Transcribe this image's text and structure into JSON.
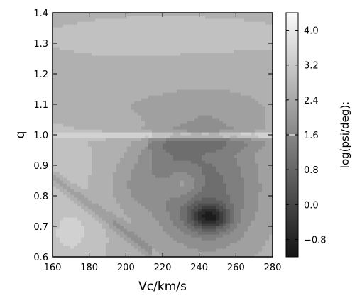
{
  "chart_data": {
    "type": "heatmap",
    "xlabel": "Vc/km/s",
    "ylabel": "q",
    "xlim": [
      160,
      280
    ],
    "ylim": [
      0.6,
      1.4
    ],
    "x_ticks": [
      "160",
      "180",
      "200",
      "220",
      "240",
      "260",
      "280"
    ],
    "y_ticks": [
      "0.6",
      "0.7",
      "0.8",
      "0.9",
      "1.0",
      "1.1",
      "1.2",
      "1.3",
      "1.4"
    ],
    "colorbar": {
      "label": "log(psi/deg):",
      "range": [
        -1.2,
        4.4
      ],
      "ticks": [
        "−0.8",
        "0.0",
        "0.8",
        "1.6",
        "2.4",
        "3.2",
        "4.0"
      ],
      "tick_values": [
        -0.8,
        0.0,
        0.8,
        1.6,
        2.4,
        3.2,
        4.0
      ],
      "levels": [
        -1.2,
        -0.8,
        -0.4,
        0.0,
        0.4,
        0.8,
        1.2,
        1.6,
        2.0,
        2.4,
        2.8,
        3.2,
        3.6,
        4.0,
        4.4
      ],
      "marker_value": 1.6
    },
    "colormap": "gray",
    "features": [
      {
        "name": "minimum",
        "x": 246,
        "q": 0.73,
        "value": -0.9
      },
      {
        "name": "bright ridge",
        "q": 1.0,
        "x_range": [
          212,
          280
        ],
        "value": 4.0
      }
    ]
  }
}
